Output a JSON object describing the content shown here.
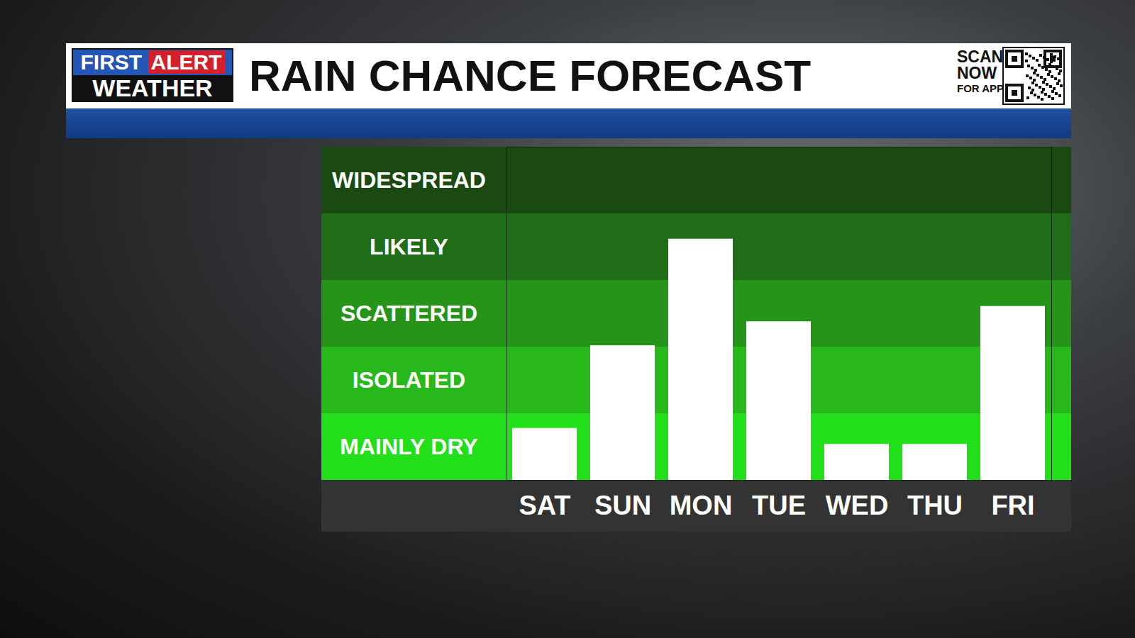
{
  "chart_data": {
    "type": "bar",
    "title": "RAIN CHANCE FORECAST",
    "annotations": [
      "FIRST ALERT",
      "WEATHER",
      "SCAN NOW FOR APP"
    ],
    "categories": [
      "SAT",
      "SUN",
      "MON",
      "TUE",
      "WED",
      "THU",
      "FRI"
    ],
    "values": [
      0.78,
      2.02,
      3.62,
      2.38,
      0.54,
      0.54,
      2.61
    ],
    "color": "#ffffff",
    "ylim": [
      0,
      5
    ],
    "yticks": [
      {
        "value": 0.5,
        "label": "MAINLY DRY"
      },
      {
        "value": 1.5,
        "label": "ISOLATED"
      },
      {
        "value": 2.5,
        "label": "SCATTERED"
      },
      {
        "value": 3.5,
        "label": "LIKELY"
      },
      {
        "value": 4.5,
        "label": "WIDESPREAD"
      }
    ],
    "grid": false
  }
}
